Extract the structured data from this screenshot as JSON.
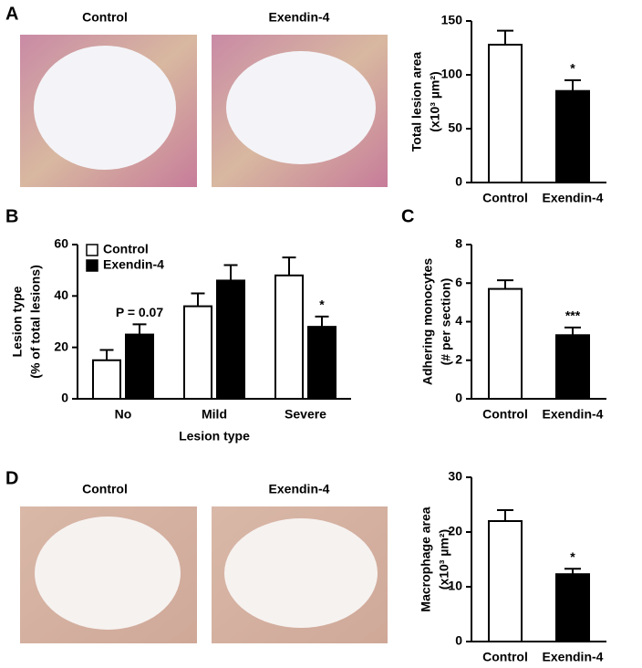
{
  "panel_labels": [
    "A",
    "B",
    "C",
    "D"
  ],
  "image_captions": {
    "A": [
      "Control",
      "Exendin-4"
    ],
    "D": [
      "Control",
      "Exendin-4"
    ]
  },
  "chart_data": [
    {
      "type": "bar",
      "ylabel": [
        "Total lesion area",
        "(x10³ µm²)"
      ],
      "categories": [
        "Control",
        "Exendin-4"
      ],
      "values": [
        128,
        85
      ],
      "errors": [
        13,
        10
      ],
      "colors": [
        "#ffffff",
        "#000000"
      ],
      "annotations": [
        null,
        "*"
      ],
      "ylim": [
        0,
        150
      ],
      "yticks": [
        0,
        50,
        100,
        150
      ]
    },
    {
      "type": "grouped-bar",
      "ylabel": [
        "Lesion type",
        "(% of total lesions)"
      ],
      "xlabel": "Lesion type",
      "categories": [
        "No",
        "Mild",
        "Severe"
      ],
      "series": [
        {
          "name": "Control",
          "color": "#ffffff",
          "values": [
            15,
            36,
            48
          ],
          "errors": [
            4,
            5,
            7
          ]
        },
        {
          "name": "Exendin-4",
          "color": "#000000",
          "values": [
            25,
            46,
            28
          ],
          "errors": [
            4,
            6,
            4
          ],
          "annotations": [
            "P = 0.07",
            null,
            "*"
          ]
        }
      ],
      "ylim": [
        0,
        60
      ],
      "yticks": [
        0,
        20,
        40,
        60
      ],
      "legend": "upper-left"
    },
    {
      "type": "bar",
      "ylabel": [
        "Adhering monocytes",
        "(# per section)"
      ],
      "categories": [
        "Control",
        "Exendin-4"
      ],
      "values": [
        5.7,
        3.3
      ],
      "errors": [
        0.45,
        0.4
      ],
      "colors": [
        "#ffffff",
        "#000000"
      ],
      "annotations": [
        null,
        "***"
      ],
      "ylim": [
        0,
        8
      ],
      "yticks": [
        0,
        2,
        4,
        6,
        8
      ]
    },
    {
      "type": "bar",
      "ylabel": [
        "Macrophage area",
        "(x10³ µm²)"
      ],
      "categories": [
        "Control",
        "Exendin-4"
      ],
      "values": [
        22,
        12.3
      ],
      "errors": [
        2,
        1
      ],
      "colors": [
        "#ffffff",
        "#000000"
      ],
      "annotations": [
        null,
        "*"
      ],
      "ylim": [
        0,
        30
      ],
      "yticks": [
        0,
        10,
        20,
        30
      ]
    }
  ]
}
